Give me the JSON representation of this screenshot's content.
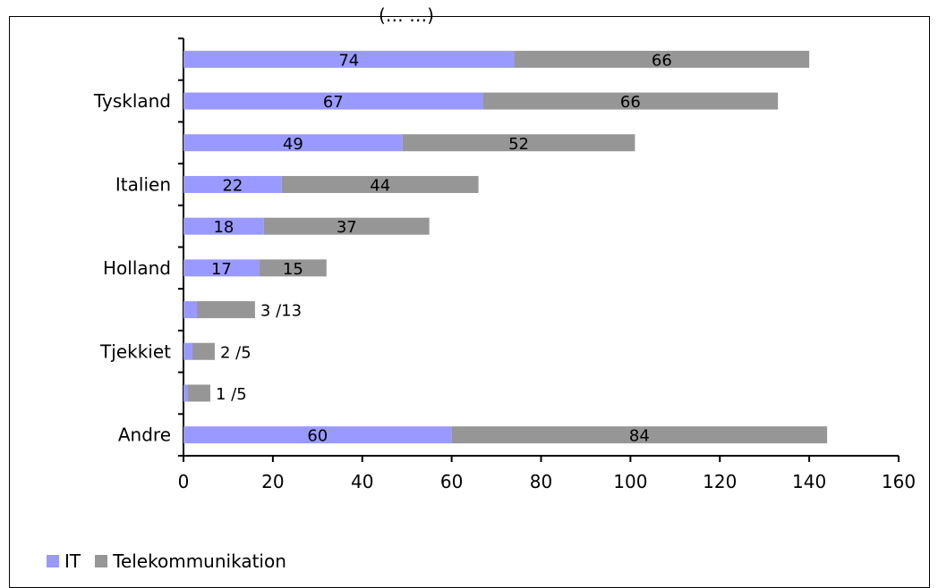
{
  "title_fragment": "(… …)",
  "chart_data": {
    "type": "bar",
    "orientation": "horizontal",
    "stacked": true,
    "categories": [
      "",
      "Tyskland",
      "",
      "Italien",
      "",
      "Holland",
      "",
      "Tjekkiet",
      "",
      "Andre"
    ],
    "series": [
      {
        "name": "IT",
        "values": [
          74,
          67,
          49,
          22,
          18,
          17,
          3,
          2,
          1,
          60
        ]
      },
      {
        "name": "Telekommunikation",
        "values": [
          66,
          66,
          52,
          44,
          37,
          15,
          13,
          5,
          5,
          84
        ]
      }
    ],
    "data_labels": [
      "74|66",
      "67|66",
      "49|52",
      "22|44",
      "18|37",
      "17|15",
      "3 /13",
      "2 /5",
      "1 /5",
      "60|84"
    ],
    "xlim": [
      0,
      160
    ],
    "xticks": [
      0,
      20,
      40,
      60,
      80,
      100,
      120,
      140,
      160
    ],
    "grid": false,
    "legend_position": "bottom-left",
    "colors": {
      "IT": "#9999ff",
      "Telekommunikation": "#969696"
    }
  }
}
